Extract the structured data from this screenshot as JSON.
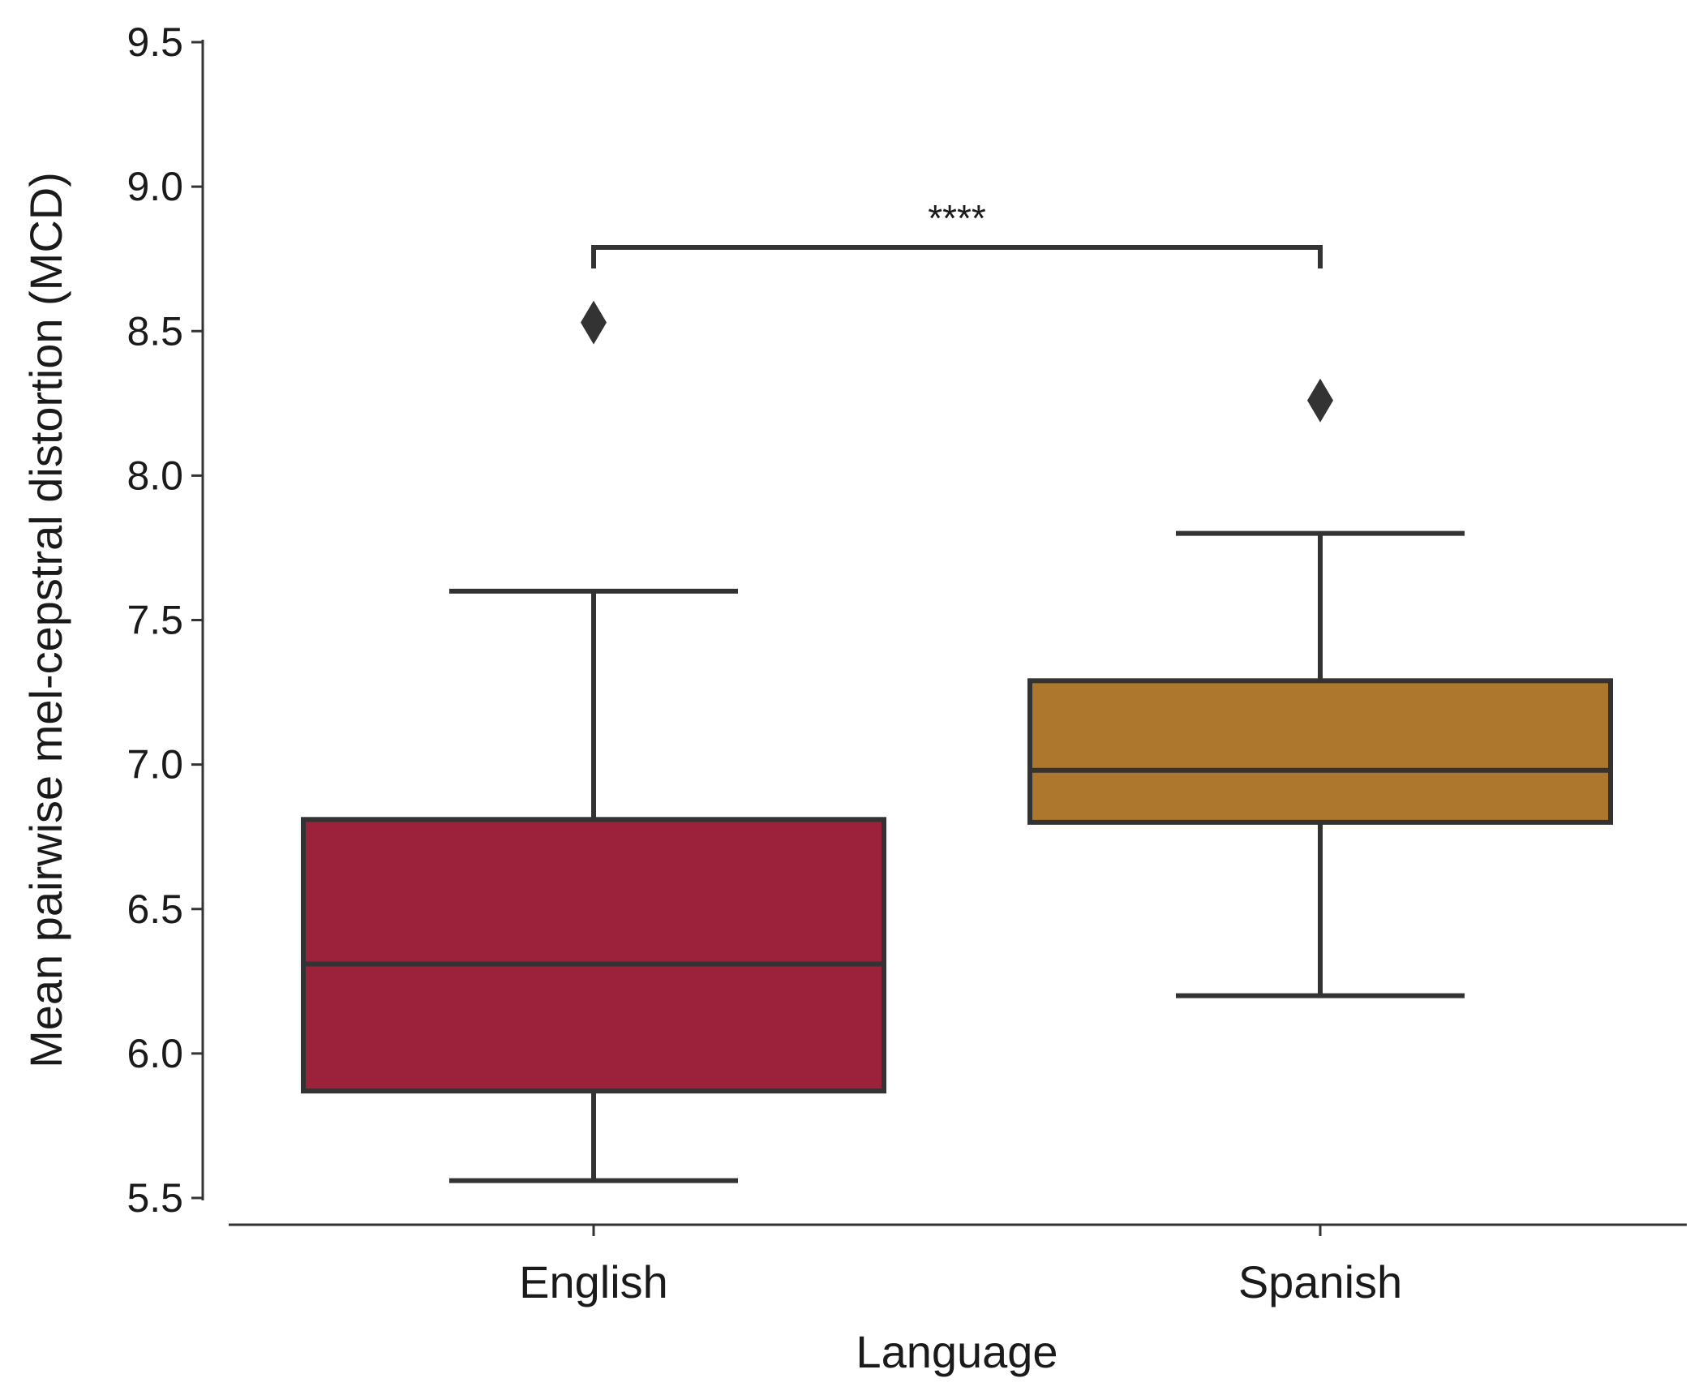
{
  "chart_data": {
    "type": "box",
    "xlabel": "Language",
    "ylabel": "Mean pairwise mel-cepstral distortion (MCD)",
    "ylim": [
      5.5,
      9.5
    ],
    "yticks": [
      "5.5",
      "6.0",
      "6.5",
      "7.0",
      "7.5",
      "8.0",
      "8.5",
      "9.0",
      "9.5"
    ],
    "grid": false,
    "categories": [
      "English",
      "Spanish"
    ],
    "boxes": [
      {
        "category": "English",
        "whisker_low": 5.56,
        "q1": 5.87,
        "median": 6.31,
        "q3": 6.81,
        "whisker_high": 7.6,
        "outliers": [
          8.53
        ],
        "color": "#9c213b"
      },
      {
        "category": "Spanish",
        "whisker_low": 6.2,
        "q1": 6.8,
        "median": 6.98,
        "q3": 7.29,
        "whisker_high": 7.8,
        "outliers": [
          8.26
        ],
        "color": "#ad772d"
      }
    ],
    "significance": {
      "label": "****",
      "y": 8.79,
      "between": [
        "English",
        "Spanish"
      ]
    }
  }
}
